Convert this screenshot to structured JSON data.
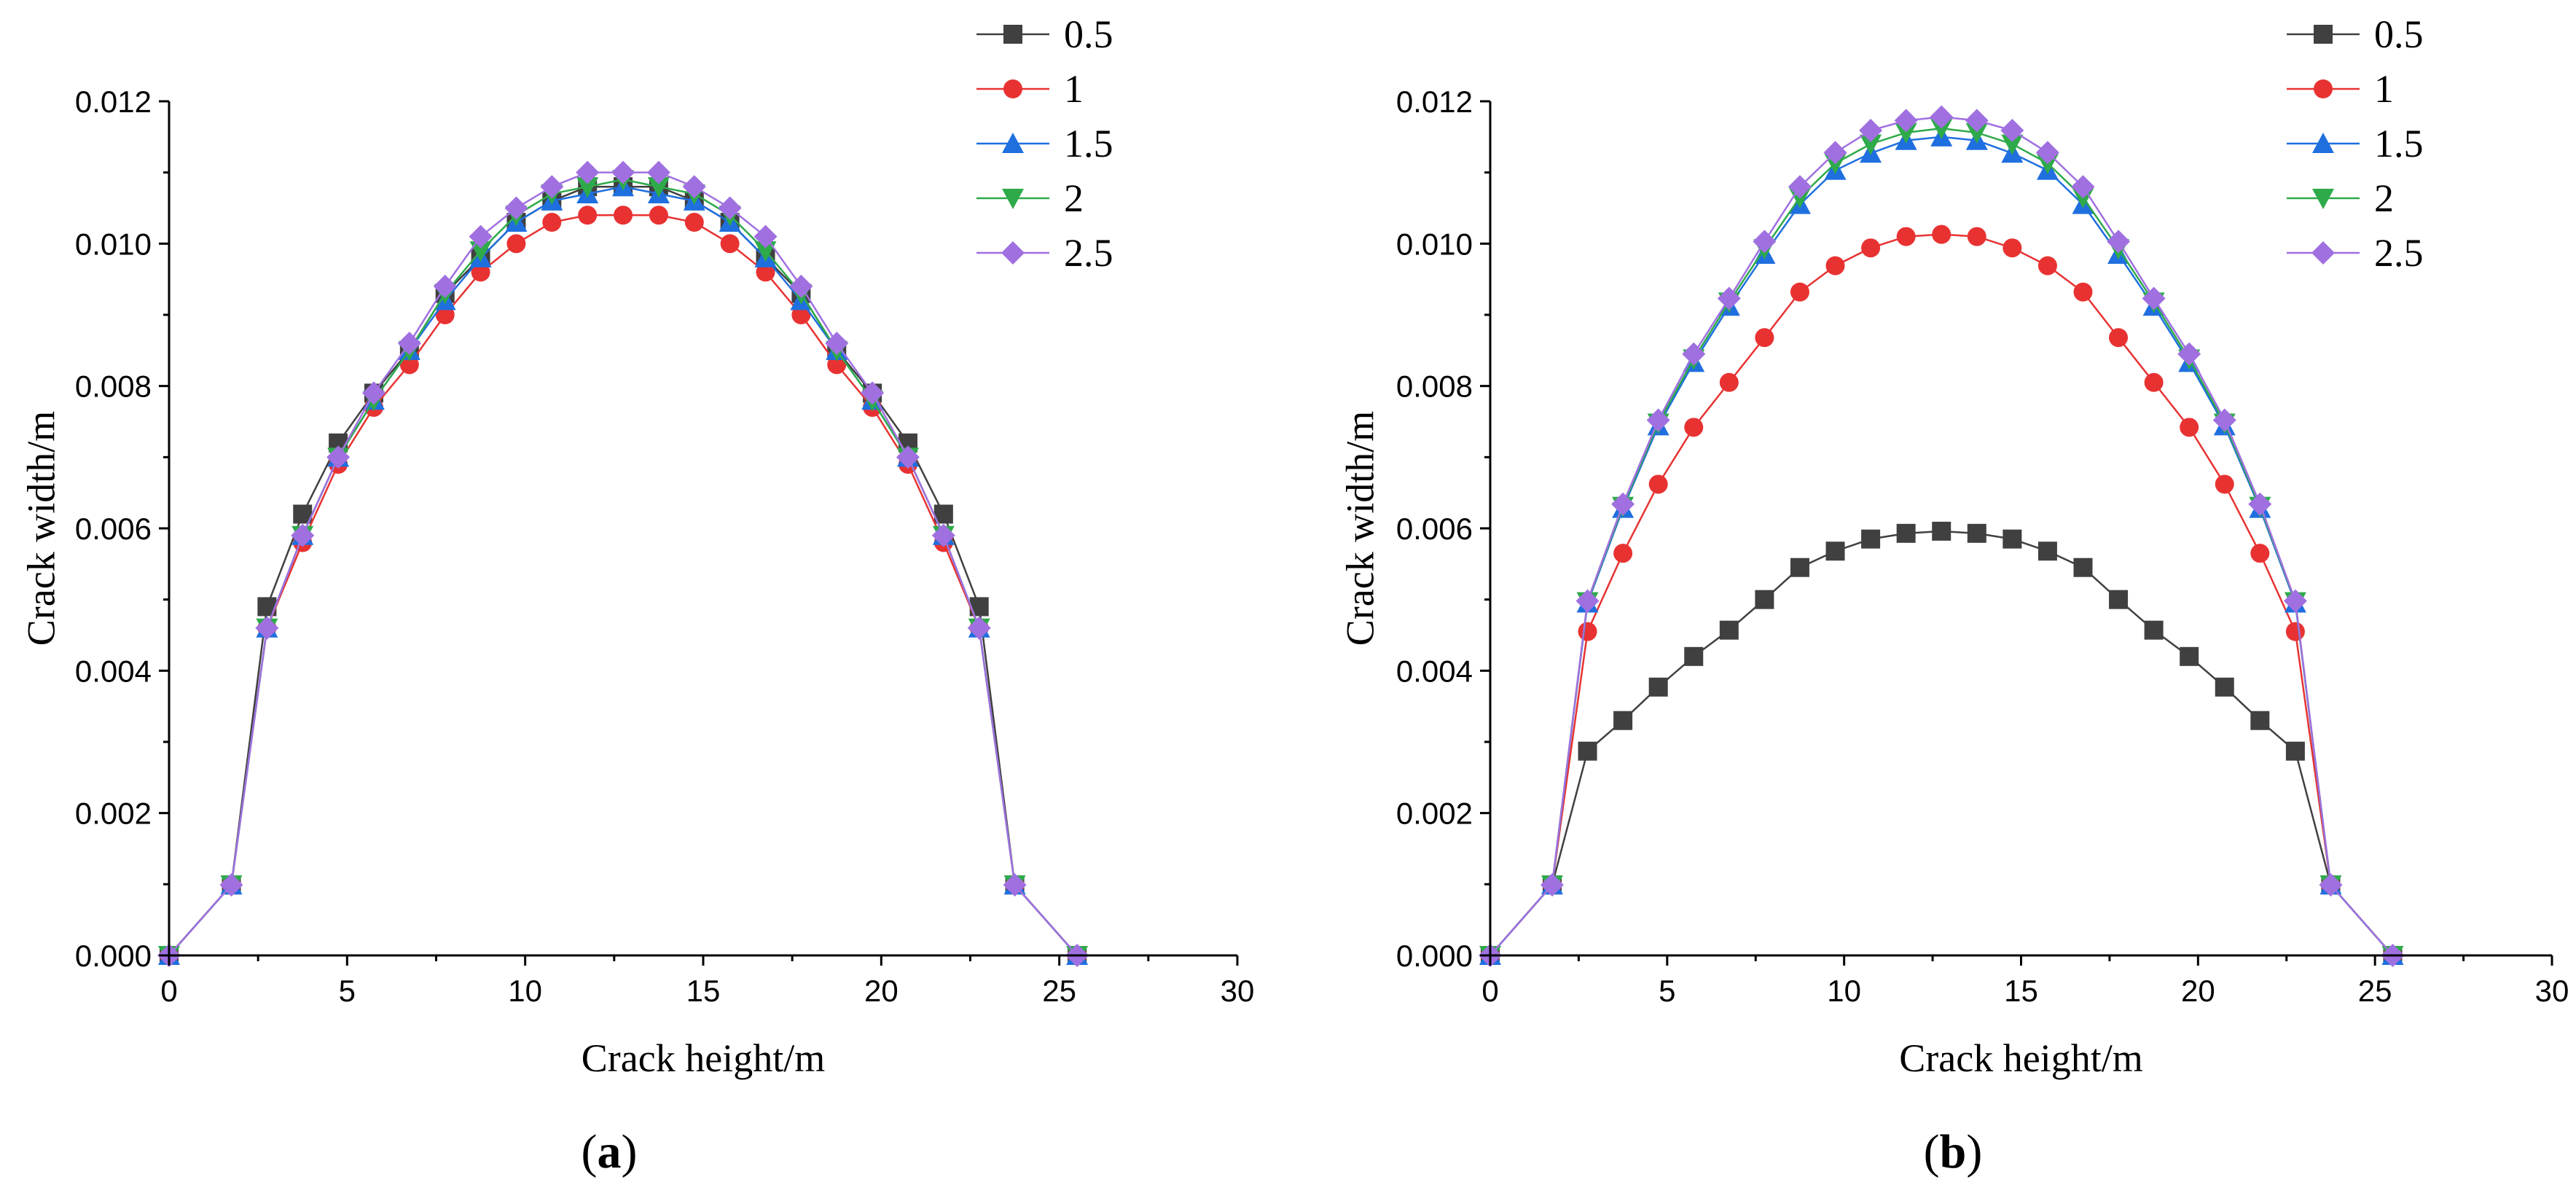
{
  "chart_data": [
    {
      "type": "line",
      "panel_label": "a",
      "xlabel": "Crack height/m",
      "ylabel": "Crack width/m",
      "xlim": [
        0,
        30
      ],
      "ylim": [
        0,
        0.012
      ],
      "xticks": [
        0,
        5,
        10,
        15,
        20,
        25,
        30
      ],
      "yticks": [
        0.0,
        0.002,
        0.004,
        0.006,
        0.008,
        0.01,
        0.012
      ],
      "ytick_labels": [
        "0.000",
        "0.002",
        "0.004",
        "0.006",
        "0.008",
        "0.010",
        "0.012"
      ],
      "legend_position": "top-right",
      "grid": false,
      "series": [
        {
          "name": "0.5",
          "color": "#404040",
          "marker": "square",
          "x": [
            0,
            1.75,
            2.75,
            3.75,
            4.75,
            5.75,
            6.75,
            7.75,
            8.75,
            9.75,
            10.75,
            11.75,
            12.75,
            13.75,
            14.75,
            15.75,
            16.75,
            17.75,
            18.75,
            19.75,
            20.75,
            21.75,
            22.75,
            23.75,
            25.5
          ],
          "y": [
            0,
            0.00099,
            0.0049,
            0.0062,
            0.0072,
            0.0079,
            0.0085,
            0.0093,
            0.0098,
            0.0103,
            0.0106,
            0.0108,
            0.0108,
            0.0108,
            0.0106,
            0.0103,
            0.0098,
            0.0093,
            0.0085,
            0.0079,
            0.0072,
            0.0062,
            0.0049,
            0.00099,
            0
          ]
        },
        {
          "name": "1",
          "color": "#e83232",
          "marker": "circle",
          "x": [
            0,
            1.75,
            2.75,
            3.75,
            4.75,
            5.75,
            6.75,
            7.75,
            8.75,
            9.75,
            10.75,
            11.75,
            12.75,
            13.75,
            14.75,
            15.75,
            16.75,
            17.75,
            18.75,
            19.75,
            20.75,
            21.75,
            22.75,
            23.75,
            25.5
          ],
          "y": [
            0,
            0.00099,
            0.0046,
            0.0058,
            0.0069,
            0.0077,
            0.0083,
            0.009,
            0.0096,
            0.01,
            0.0103,
            0.0104,
            0.0104,
            0.0104,
            0.0103,
            0.01,
            0.0096,
            0.009,
            0.0083,
            0.0077,
            0.0069,
            0.0058,
            0.0046,
            0.00099,
            0
          ]
        },
        {
          "name": "1.5",
          "color": "#1f6fdf",
          "marker": "triangle-up",
          "x": [
            0,
            1.75,
            2.75,
            3.75,
            4.75,
            5.75,
            6.75,
            7.75,
            8.75,
            9.75,
            10.75,
            11.75,
            12.75,
            13.75,
            14.75,
            15.75,
            16.75,
            17.75,
            18.75,
            19.75,
            20.75,
            21.75,
            22.75,
            23.75,
            25.5
          ],
          "y": [
            0,
            0.00099,
            0.0046,
            0.0059,
            0.007,
            0.0078,
            0.0085,
            0.0092,
            0.0098,
            0.0103,
            0.0106,
            0.0107,
            0.0108,
            0.0107,
            0.0106,
            0.0103,
            0.0098,
            0.0092,
            0.0085,
            0.0078,
            0.007,
            0.0059,
            0.0046,
            0.00099,
            0
          ]
        },
        {
          "name": "2",
          "color": "#2eaa4a",
          "marker": "triangle-down",
          "x": [
            0,
            1.75,
            2.75,
            3.75,
            4.75,
            5.75,
            6.75,
            7.75,
            8.75,
            9.75,
            10.75,
            11.75,
            12.75,
            13.75,
            14.75,
            15.75,
            16.75,
            17.75,
            18.75,
            19.75,
            20.75,
            21.75,
            22.75,
            23.75,
            25.5
          ],
          "y": [
            0,
            0.00099,
            0.0046,
            0.0059,
            0.007,
            0.0078,
            0.0085,
            0.0093,
            0.0099,
            0.0104,
            0.0107,
            0.0108,
            0.0109,
            0.0108,
            0.0107,
            0.0104,
            0.0099,
            0.0093,
            0.0085,
            0.0078,
            0.007,
            0.0059,
            0.0046,
            0.00099,
            0
          ]
        },
        {
          "name": "2.5",
          "color": "#a070e0",
          "marker": "diamond",
          "x": [
            0,
            1.75,
            2.75,
            3.75,
            4.75,
            5.75,
            6.75,
            7.75,
            8.75,
            9.75,
            10.75,
            11.75,
            12.75,
            13.75,
            14.75,
            15.75,
            16.75,
            17.75,
            18.75,
            19.75,
            20.75,
            21.75,
            22.75,
            23.75,
            25.5
          ],
          "y": [
            0,
            0.00099,
            0.0046,
            0.0059,
            0.007,
            0.0079,
            0.0086,
            0.0094,
            0.0101,
            0.0105,
            0.0108,
            0.011,
            0.011,
            0.011,
            0.0108,
            0.0105,
            0.0101,
            0.0094,
            0.0086,
            0.0079,
            0.007,
            0.0059,
            0.0046,
            0.00099,
            0
          ]
        }
      ]
    },
    {
      "type": "line",
      "panel_label": "b",
      "xlabel": "Crack height/m",
      "ylabel": "Crack width/m",
      "xlim": [
        0,
        30
      ],
      "ylim": [
        0,
        0.012
      ],
      "xticks": [
        0,
        5,
        10,
        15,
        20,
        25,
        30
      ],
      "yticks": [
        0.0,
        0.002,
        0.004,
        0.006,
        0.008,
        0.01,
        0.012
      ],
      "ytick_labels": [
        "0.000",
        "0.002",
        "0.004",
        "0.006",
        "0.008",
        "0.010",
        "0.012"
      ],
      "legend_position": "top-right",
      "grid": false,
      "series": [
        {
          "name": "0.5",
          "color": "#404040",
          "marker": "square",
          "x": [
            0,
            1.75,
            2.75,
            3.75,
            4.75,
            5.75,
            6.75,
            7.75,
            8.75,
            9.75,
            10.75,
            11.75,
            12.75,
            13.75,
            14.75,
            15.75,
            16.75,
            17.75,
            18.75,
            19.75,
            20.75,
            21.75,
            22.75,
            23.75,
            25.5
          ],
          "y": [
            0,
            0.00099,
            0.00287,
            0.0033,
            0.00377,
            0.0042,
            0.00457,
            0.005,
            0.00545,
            0.00568,
            0.00585,
            0.00593,
            0.00596,
            0.00593,
            0.00585,
            0.00568,
            0.00545,
            0.005,
            0.00457,
            0.0042,
            0.00377,
            0.0033,
            0.00287,
            0.00099,
            0
          ]
        },
        {
          "name": "1",
          "color": "#e83232",
          "marker": "circle",
          "x": [
            0,
            1.75,
            2.75,
            3.75,
            4.75,
            5.75,
            6.75,
            7.75,
            8.75,
            9.75,
            10.75,
            11.75,
            12.75,
            13.75,
            14.75,
            15.75,
            16.75,
            17.75,
            18.75,
            19.75,
            20.75,
            21.75,
            22.75,
            23.75,
            25.5
          ],
          "y": [
            0,
            0.00099,
            0.00455,
            0.00565,
            0.00662,
            0.00742,
            0.00805,
            0.00868,
            0.00932,
            0.00969,
            0.00994,
            0.0101,
            0.01013,
            0.0101,
            0.00994,
            0.00969,
            0.00932,
            0.00868,
            0.00805,
            0.00742,
            0.00662,
            0.00565,
            0.00455,
            0.00099,
            0
          ]
        },
        {
          "name": "1.5",
          "color": "#1f6fdf",
          "marker": "triangle-up",
          "x": [
            0,
            1.75,
            2.75,
            3.75,
            4.75,
            5.75,
            6.75,
            7.75,
            8.75,
            9.75,
            10.75,
            11.75,
            12.75,
            13.75,
            14.75,
            15.75,
            16.75,
            17.75,
            18.75,
            19.75,
            20.75,
            21.75,
            22.75,
            23.75,
            25.5
          ],
          "y": [
            0,
            0.00099,
            0.00495,
            0.00628,
            0.00744,
            0.00833,
            0.00912,
            0.00985,
            0.01055,
            0.01103,
            0.01127,
            0.01145,
            0.0115,
            0.01145,
            0.01127,
            0.01103,
            0.01055,
            0.00985,
            0.00912,
            0.00833,
            0.00744,
            0.00628,
            0.00495,
            0.00099,
            0
          ]
        },
        {
          "name": "2",
          "color": "#2eaa4a",
          "marker": "triangle-down",
          "x": [
            0,
            1.75,
            2.75,
            3.75,
            4.75,
            5.75,
            6.75,
            7.75,
            8.75,
            9.75,
            10.75,
            11.75,
            12.75,
            13.75,
            14.75,
            15.75,
            16.75,
            17.75,
            18.75,
            19.75,
            20.75,
            21.75,
            22.75,
            23.75,
            25.5
          ],
          "y": [
            0,
            0.00099,
            0.00497,
            0.00631,
            0.00748,
            0.00838,
            0.00918,
            0.00993,
            0.01065,
            0.01113,
            0.0114,
            0.01156,
            0.01162,
            0.01156,
            0.0114,
            0.01113,
            0.01065,
            0.00993,
            0.00918,
            0.00838,
            0.00748,
            0.00631,
            0.00497,
            0.00099,
            0
          ]
        },
        {
          "name": "2.5",
          "color": "#a070e0",
          "marker": "diamond",
          "x": [
            0,
            1.75,
            2.75,
            3.75,
            4.75,
            5.75,
            6.75,
            7.75,
            8.75,
            9.75,
            10.75,
            11.75,
            12.75,
            13.75,
            14.75,
            15.75,
            16.75,
            17.75,
            18.75,
            19.75,
            20.75,
            21.75,
            22.75,
            23.75,
            25.5
          ],
          "y": [
            0,
            0.00099,
            0.00498,
            0.00634,
            0.00752,
            0.00845,
            0.00923,
            0.01003,
            0.0108,
            0.01128,
            0.01159,
            0.01173,
            0.01178,
            0.01173,
            0.01159,
            0.01128,
            0.0108,
            0.01003,
            0.00923,
            0.00845,
            0.00752,
            0.00634,
            0.00498,
            0.00099,
            0
          ]
        }
      ]
    }
  ]
}
